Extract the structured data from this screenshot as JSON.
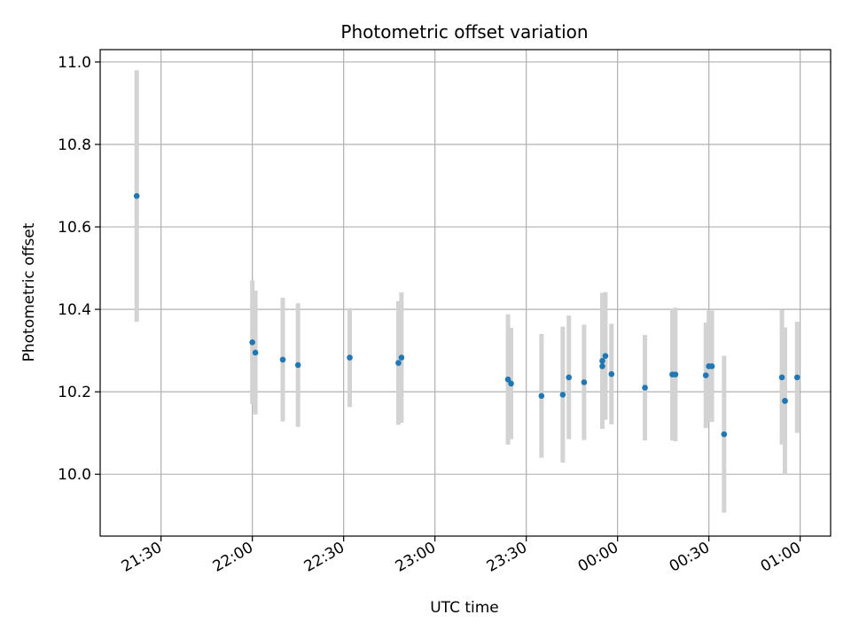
{
  "chart_data": {
    "type": "scatter",
    "title": "Photometric offset variation",
    "xlabel": "UTC time",
    "ylabel": "Photometric offset",
    "grid": true,
    "colors": {
      "point": "#1f77b4",
      "errorbar": "#d3d3d3",
      "grid": "#b0b0b0"
    },
    "xlim": [
      "21:10",
      "01:10"
    ],
    "ylim": [
      9.85,
      11.03
    ],
    "xticks": [
      "21:30",
      "22:00",
      "22:30",
      "23:00",
      "23:30",
      "00:00",
      "00:30",
      "01:00"
    ],
    "yticks": [
      "10.0",
      "10.2",
      "10.4",
      "10.6",
      "10.8",
      "11.0"
    ],
    "points": [
      {
        "x": "21:22",
        "y": 10.675,
        "err": 0.305
      },
      {
        "x": "22:00",
        "y": 10.32,
        "err": 0.15
      },
      {
        "x": "22:01",
        "y": 10.295,
        "err": 0.15
      },
      {
        "x": "22:10",
        "y": 10.278,
        "err": 0.15
      },
      {
        "x": "22:15",
        "y": 10.265,
        "err": 0.15
      },
      {
        "x": "22:32",
        "y": 10.283,
        "err": 0.12
      },
      {
        "x": "22:48",
        "y": 10.27,
        "err": 0.15
      },
      {
        "x": "22:49",
        "y": 10.283,
        "err": 0.158
      },
      {
        "x": "23:24",
        "y": 10.23,
        "err": 0.158
      },
      {
        "x": "23:25",
        "y": 10.22,
        "err": 0.135
      },
      {
        "x": "23:35",
        "y": 10.19,
        "err": 0.15
      },
      {
        "x": "23:42",
        "y": 10.193,
        "err": 0.165
      },
      {
        "x": "23:44",
        "y": 10.235,
        "err": 0.15
      },
      {
        "x": "23:49",
        "y": 10.223,
        "err": 0.14
      },
      {
        "x": "23:55",
        "y": 10.275,
        "err": 0.165
      },
      {
        "x": "23:55",
        "y": 10.262,
        "err": 0.128
      },
      {
        "x": "23:56",
        "y": 10.287,
        "err": 0.155
      },
      {
        "x": "23:58",
        "y": 10.243,
        "err": 0.122
      },
      {
        "x": "00:09",
        "y": 10.21,
        "err": 0.128
      },
      {
        "x": "00:18",
        "y": 10.242,
        "err": 0.16
      },
      {
        "x": "00:19",
        "y": 10.242,
        "err": 0.162
      },
      {
        "x": "00:29",
        "y": 10.24,
        "err": 0.128
      },
      {
        "x": "00:30",
        "y": 10.262,
        "err": 0.135
      },
      {
        "x": "00:31",
        "y": 10.262,
        "err": 0.135
      },
      {
        "x": "00:35",
        "y": 10.097,
        "err": 0.19
      },
      {
        "x": "00:54",
        "y": 10.235,
        "err": 0.163
      },
      {
        "x": "00:55",
        "y": 10.178,
        "err": 0.178
      },
      {
        "x": "00:55",
        "y": 10.178,
        "err": 0.178
      },
      {
        "x": "00:59",
        "y": 10.235,
        "err": 0.135
      }
    ]
  }
}
